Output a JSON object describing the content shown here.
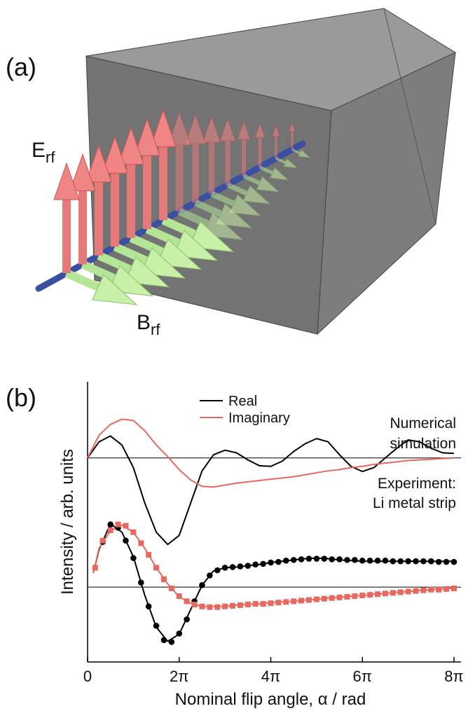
{
  "panel_a": {
    "label": "(a)",
    "e_label": {
      "main": "E",
      "sub": "rf"
    },
    "b_label": {
      "main": "B",
      "sub": "rf"
    }
  },
  "chart_data": {
    "type": "line",
    "panel_label": "(b)",
    "xlabel": "Nominal flip angle, α / rad",
    "ylabel": "Intensity / arb. units",
    "xlim": [
      0,
      25.1327
    ],
    "ylim": [
      -1.16,
      3.18
    ],
    "xticks": [
      0,
      {
        "value": 6.2832,
        "label": "2π"
      },
      {
        "value": 12.5664,
        "label": "4π"
      },
      {
        "value": 18.8496,
        "label": "6π"
      },
      {
        "value": 25.1327,
        "label": "8π"
      }
    ],
    "hlines": [
      0,
      2
    ],
    "annotations": [
      [
        "Numerical",
        "simulation"
      ],
      [
        "Experiment:",
        "Li metal strip"
      ]
    ],
    "series": [
      {
        "name": "Real",
        "color": "#000000",
        "x": [
          0,
          0.7854,
          1.5708,
          2.3562,
          3.1416,
          3.927,
          4.7124,
          5.4978,
          6.2832,
          7.0686,
          7.854,
          8.6394,
          9.4248,
          10.2102,
          10.9956,
          11.781,
          12.5664,
          13.3518,
          14.1372,
          14.9226,
          15.708,
          16.4934,
          17.2788,
          18.0642,
          18.8496,
          19.635,
          20.4204,
          21.2058,
          21.9911,
          22.7765,
          23.5619,
          24.3473,
          25.1327
        ],
        "values": [
          2.0,
          2.25,
          2.34,
          2.2,
          1.85,
          1.3,
          0.85,
          0.66,
          0.8,
          1.3,
          1.8,
          2.05,
          2.12,
          2.08,
          1.97,
          1.88,
          1.87,
          1.95,
          2.1,
          2.22,
          2.3,
          2.25,
          2.05,
          1.87,
          1.79,
          1.85,
          2.0,
          2.15,
          2.28,
          2.25,
          2.15,
          2.08,
          2.07
        ]
      },
      {
        "name": "Imaginary",
        "color": "#e8685f",
        "x": [
          0,
          0.7854,
          1.5708,
          2.3562,
          3.1416,
          3.927,
          4.7124,
          5.4978,
          6.2832,
          7.0686,
          7.854,
          8.6394,
          9.4248,
          10.2102,
          10.9956,
          11.781,
          12.5664,
          13.3518,
          14.1372,
          14.9226,
          15.708,
          16.4934,
          17.2788,
          18.0642,
          18.8496,
          19.635,
          20.4204,
          21.2058,
          21.9911,
          22.7765,
          23.5619,
          24.3473,
          25.1327
        ],
        "values": [
          2.0,
          2.35,
          2.52,
          2.6,
          2.58,
          2.42,
          2.2,
          2.02,
          1.82,
          1.66,
          1.56,
          1.55,
          1.58,
          1.61,
          1.63,
          1.65,
          1.67,
          1.69,
          1.71,
          1.74,
          1.77,
          1.8,
          1.82,
          1.85,
          1.87,
          1.9,
          1.92,
          1.94,
          1.96,
          1.97,
          1.98,
          1.99,
          2.0
        ]
      },
      {
        "color": "#000000",
        "x": [
          0.3927,
          0.7854,
          1.5708,
          2.3562,
          3.1416,
          3.927,
          4.7124,
          5.4978,
          6.2832,
          7.0686,
          7.854,
          8.6394,
          9.4248,
          10.2102,
          10.9956,
          11.781,
          12.5664,
          13.3518,
          14.1372,
          14.9226,
          15.708,
          16.4934,
          17.2788,
          18.0642,
          18.8496,
          19.635,
          20.4204,
          21.2058,
          21.9911,
          22.7765,
          23.5619,
          24.3473,
          25.1327
        ],
        "values": [
          0.22,
          0.58,
          0.98,
          0.85,
          0.47,
          -0.13,
          -0.62,
          -0.84,
          -0.73,
          -0.35,
          0.03,
          0.25,
          0.3,
          0.31,
          0.33,
          0.35,
          0.38,
          0.4,
          0.42,
          0.44,
          0.45,
          0.44,
          0.42,
          0.41,
          0.4,
          0.4,
          0.4,
          0.4,
          0.4,
          0.4,
          0.4,
          0.4,
          0.4
        ]
      },
      {
        "color": "#e8685f",
        "x": [
          0.3927,
          0.7854,
          1.5708,
          2.3562,
          3.1416,
          3.927,
          4.7124,
          5.4978,
          6.2832,
          7.0686,
          7.854,
          8.6394,
          9.4248,
          10.2102,
          10.9956,
          11.781,
          12.5664,
          13.3518,
          14.1372,
          14.9226,
          15.708,
          16.4934,
          17.2788,
          18.0642,
          18.8496,
          19.635,
          20.4204,
          21.2058,
          21.9911,
          22.7765,
          23.5619,
          24.3473,
          25.1327
        ],
        "values": [
          0.22,
          0.6,
          0.87,
          0.96,
          0.85,
          0.6,
          0.3,
          0.05,
          -0.15,
          -0.25,
          -0.3,
          -0.3,
          -0.3,
          -0.28,
          -0.27,
          -0.26,
          -0.24,
          -0.23,
          -0.22,
          -0.2,
          -0.19,
          -0.17,
          -0.16,
          -0.14,
          -0.13,
          -0.11,
          -0.1,
          -0.08,
          -0.07,
          -0.05,
          -0.04,
          -0.03,
          -0.02
        ]
      },
      {
        "color": "#000000",
        "marker": "circle",
        "x": [
          1.0472,
          1.5708,
          2.0944,
          2.618,
          3.1416,
          3.6652,
          4.1888,
          4.7124,
          5.236,
          5.7596,
          6.2832,
          6.8068,
          7.3304,
          7.854,
          8.3776,
          8.9012,
          9.4248,
          9.9484,
          10.472,
          10.9956,
          11.5192,
          12.0428,
          12.5664,
          13.09,
          13.6136,
          14.1372,
          14.6608,
          15.1844,
          15.708,
          16.2316,
          16.7552,
          17.2788,
          17.8024,
          18.326,
          18.8496,
          19.3732,
          19.8968,
          20.4204,
          20.944,
          21.4676,
          21.9912,
          22.5148,
          23.0384,
          23.562,
          24.0856,
          24.6092,
          25.1327
        ],
        "values": [
          0.7,
          0.97,
          0.92,
          0.72,
          0.45,
          0.07,
          -0.3,
          -0.6,
          -0.82,
          -0.85,
          -0.72,
          -0.5,
          -0.22,
          0.03,
          0.18,
          0.26,
          0.3,
          0.31,
          0.32,
          0.33,
          0.35,
          0.36,
          0.38,
          0.39,
          0.41,
          0.42,
          0.43,
          0.44,
          0.44,
          0.44,
          0.43,
          0.43,
          0.42,
          0.42,
          0.41,
          0.41,
          0.41,
          0.41,
          0.4,
          0.4,
          0.4,
          0.4,
          0.4,
          0.4,
          0.39,
          0.39,
          0.39
        ]
      },
      {
        "color": "#e8685f",
        "marker": "square",
        "x": [
          0.5236,
          1.0472,
          1.5708,
          2.0944,
          2.618,
          3.1416,
          3.6652,
          4.1888,
          4.7124,
          5.236,
          5.7596,
          6.2832,
          6.8068,
          7.3304,
          7.854,
          8.3776,
          8.9012,
          9.4248,
          9.9484,
          10.472,
          10.9956,
          11.5192,
          12.0428,
          12.5664,
          13.09,
          13.6136,
          14.1372,
          14.6608,
          15.1844,
          15.708,
          16.2316,
          16.7552,
          17.2788,
          17.8024,
          18.326,
          18.8496,
          19.3732,
          19.8968,
          20.4204,
          20.944,
          21.4676,
          21.9912,
          22.5148,
          23.0384,
          23.562,
          24.0856,
          24.6092,
          25.1327
        ],
        "values": [
          0.3,
          0.72,
          0.88,
          0.97,
          0.95,
          0.85,
          0.68,
          0.5,
          0.3,
          0.12,
          -0.02,
          -0.14,
          -0.22,
          -0.27,
          -0.3,
          -0.31,
          -0.31,
          -0.3,
          -0.29,
          -0.28,
          -0.27,
          -0.26,
          -0.26,
          -0.25,
          -0.24,
          -0.23,
          -0.22,
          -0.21,
          -0.2,
          -0.19,
          -0.18,
          -0.17,
          -0.16,
          -0.15,
          -0.14,
          -0.13,
          -0.12,
          -0.11,
          -0.1,
          -0.09,
          -0.08,
          -0.07,
          -0.06,
          -0.05,
          -0.04,
          -0.04,
          -0.03,
          -0.02
        ]
      }
    ]
  }
}
